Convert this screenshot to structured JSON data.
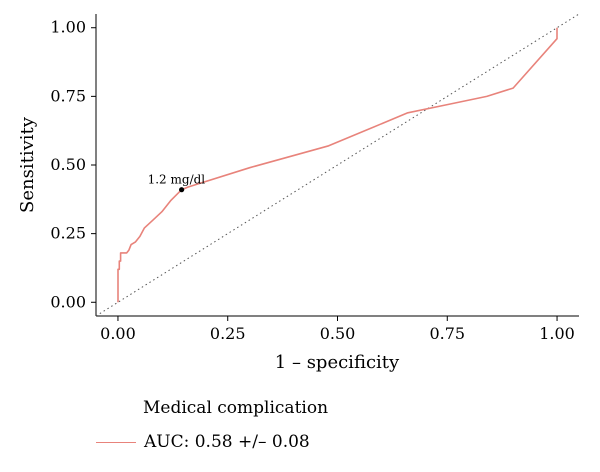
{
  "chart_data": {
    "type": "line",
    "xlabel": "1 – specificity",
    "ylabel": "Sensitivity",
    "xlim": [
      -0.05,
      1.05
    ],
    "ylim": [
      -0.05,
      1.05
    ],
    "x_ticks": [
      0.0,
      0.25,
      0.5,
      0.75,
      1.0
    ],
    "x_tick_labels": [
      "0.00",
      "0.25",
      "0.50",
      "0.75",
      "1.00"
    ],
    "y_ticks": [
      0.0,
      0.25,
      0.5,
      0.75,
      1.0
    ],
    "y_tick_labels": [
      "0.00",
      "0.25",
      "0.50",
      "0.75",
      "1.00"
    ],
    "grid": false,
    "series": [
      {
        "name": "AUC: 0.58 +/– 0.08",
        "color": "#e8837b",
        "x": [
          0.0,
          0.0,
          0.003,
          0.003,
          0.006,
          0.006,
          0.02,
          0.025,
          0.03,
          0.04,
          0.05,
          0.06,
          0.08,
          0.1,
          0.12,
          0.145,
          0.16,
          0.3,
          0.48,
          0.66,
          0.75,
          0.84,
          0.9,
          1.0,
          1.0
        ],
        "y": [
          0.0,
          0.12,
          0.12,
          0.15,
          0.15,
          0.18,
          0.18,
          0.19,
          0.21,
          0.22,
          0.24,
          0.27,
          0.3,
          0.33,
          0.37,
          0.41,
          0.42,
          0.49,
          0.57,
          0.69,
          0.72,
          0.75,
          0.78,
          0.96,
          1.0
        ]
      }
    ],
    "reference_line": {
      "x": [
        -0.05,
        1.05
      ],
      "y": [
        -0.05,
        1.05
      ],
      "style": "dotted",
      "color": "#555555"
    },
    "annotations": [
      {
        "text": "1.2 mg/dl",
        "x": 0.145,
        "y": 0.41
      }
    ],
    "legend": {
      "title": "Medical complication",
      "placement": "bottom-left"
    }
  }
}
